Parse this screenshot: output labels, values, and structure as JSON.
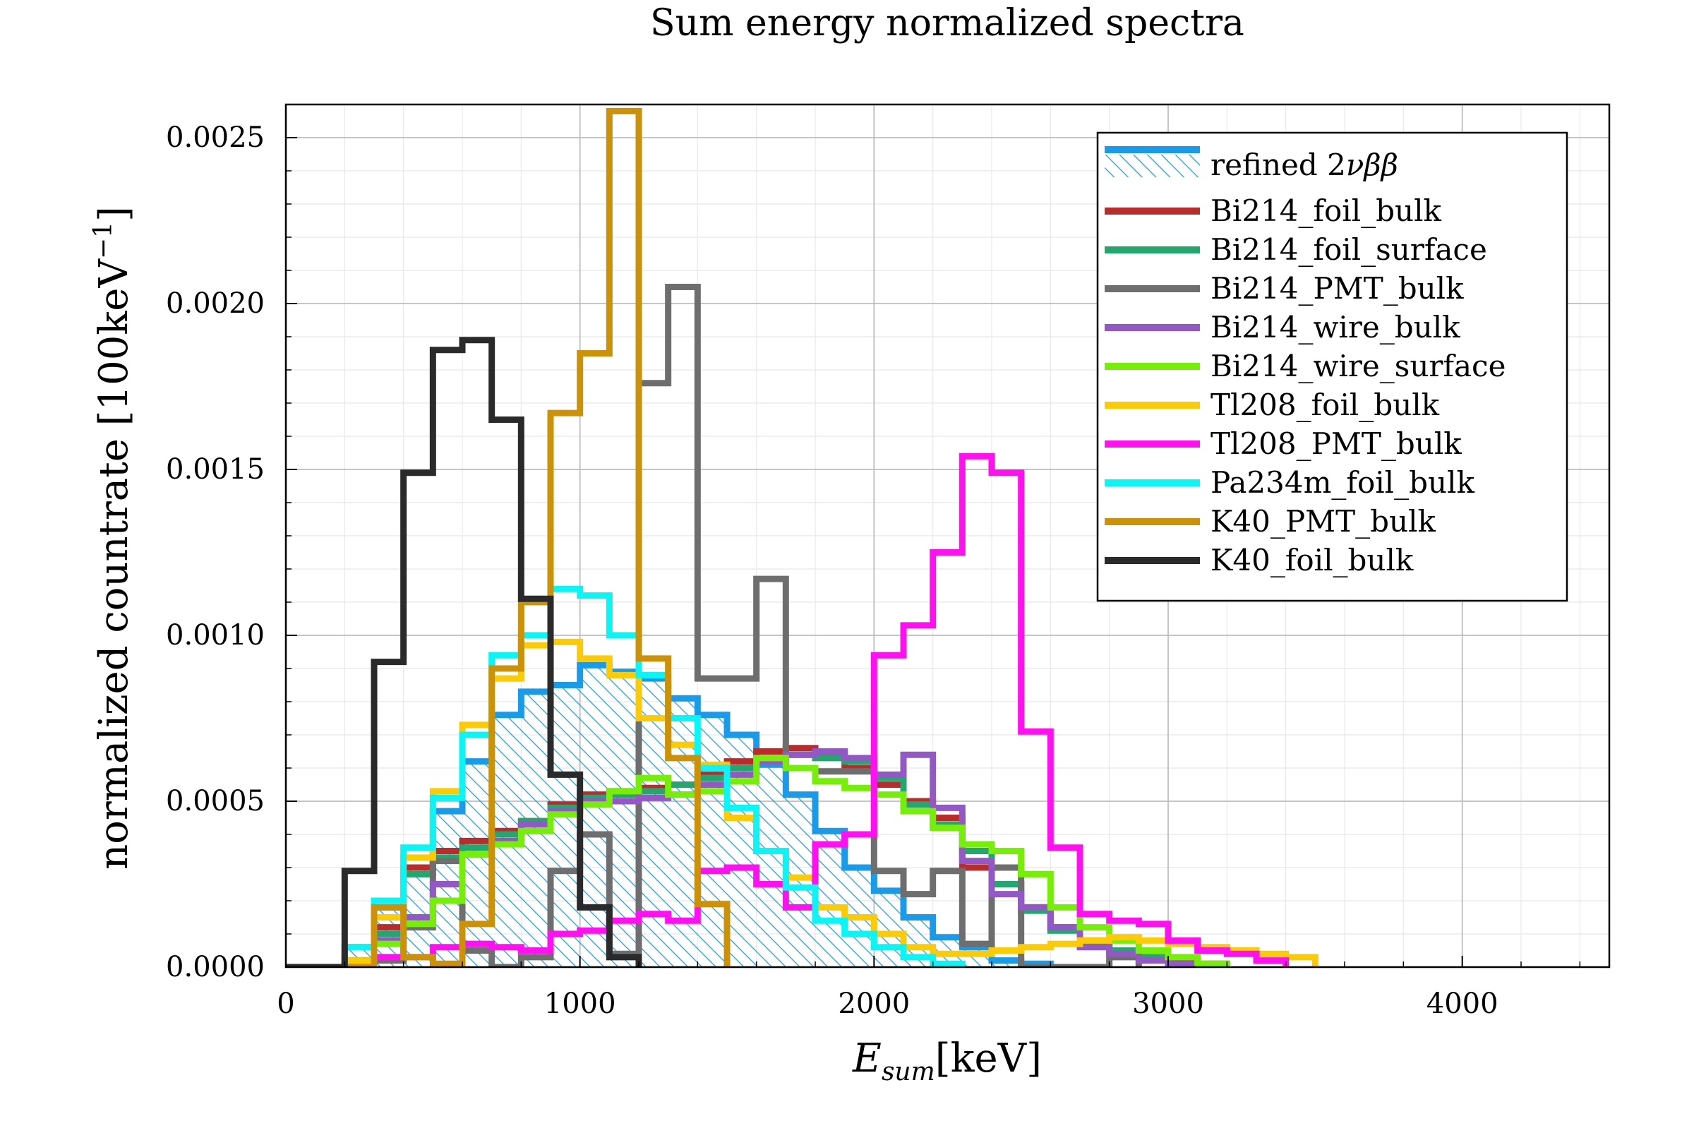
{
  "chart_data": {
    "type": "step-histogram",
    "title": "Sum energy normalized spectra",
    "xlabel": "E_sum[keV]",
    "xlabel_main": "E",
    "xlabel_sub": "sum",
    "xlabel_unit": "[keV]",
    "ylabel": "normalized countrate [100keV^-1]",
    "ylabel_main": "normalized countrate [100keV",
    "ylabel_sup": "−1",
    "ylabel_close": "]",
    "xlim": [
      0,
      4500
    ],
    "ylim": [
      0,
      0.0026
    ],
    "xticks": [
      0,
      1000,
      2000,
      3000,
      4000
    ],
    "xtick_labels": [
      "0",
      "1000",
      "2000",
      "3000",
      "4000"
    ],
    "yticks": [
      0,
      0.0005,
      0.001,
      0.0015,
      0.002,
      0.0025
    ],
    "ytick_labels": [
      "0.0000",
      "0.0005",
      "0.0010",
      "0.0015",
      "0.0020",
      "0.0025"
    ],
    "grid": true,
    "legend_position": "top-right",
    "bin_width": 100,
    "bin_start": 0,
    "series": [
      {
        "name": "refined 2νββ",
        "name_prefix": "refined 2",
        "name_greek": "νββ",
        "color": "#1a9bea",
        "hatched": true,
        "values": [
          0,
          0,
          6e-05,
          0.00018,
          0.0003,
          0.00047,
          0.00062,
          0.00076,
          0.00083,
          0.00085,
          0.00091,
          0.00089,
          0.00087,
          0.00081,
          0.00076,
          0.0007,
          0.00061,
          0.00052,
          0.00041,
          0.0003,
          0.00023,
          0.00015,
          9e-05,
          6e-05,
          2e-05,
          1e-05,
          0,
          0,
          0,
          0,
          0,
          0,
          0,
          0,
          0
        ]
      },
      {
        "name": "Bi214_foil_bulk",
        "color": "#b82c2c",
        "values": [
          0,
          0,
          2e-05,
          0.00012,
          0.0003,
          0.00035,
          0.00038,
          0.00041,
          0.00044,
          0.00049,
          0.00052,
          0.00053,
          0.00054,
          0.00055,
          0.00058,
          0.00062,
          0.00065,
          0.00066,
          0.00064,
          0.0006,
          0.00055,
          0.0005,
          0.00045,
          0.0003,
          0.00025,
          0.00018,
          0.00012,
          8e-05,
          5e-05,
          3e-05,
          2e-05,
          1e-05,
          0,
          0,
          0
        ]
      },
      {
        "name": "Bi214_foil_surface",
        "color": "#25a66e",
        "values": [
          0,
          0,
          2e-05,
          0.0001,
          0.00028,
          0.00033,
          0.00036,
          0.0004,
          0.00044,
          0.00048,
          0.00051,
          0.00052,
          0.00053,
          0.00055,
          0.00057,
          0.0006,
          0.00063,
          0.00064,
          0.00063,
          0.00062,
          0.00057,
          0.00049,
          0.00043,
          0.00035,
          0.00025,
          0.00017,
          0.00011,
          7e-05,
          5e-05,
          3e-05,
          1e-05,
          0,
          0,
          0,
          0
        ]
      },
      {
        "name": "Bi214_PMT_bulk",
        "color": "#6e6e6e",
        "values": [
          0,
          0,
          0,
          2e-05,
          0.00012,
          0.00032,
          5e-05,
          0,
          3e-05,
          0.00029,
          0.0004,
          4e-05,
          0.00176,
          0.00205,
          0.00087,
          0.00087,
          0.00117,
          0.0006,
          0.00059,
          0.00059,
          0.00029,
          0.00022,
          0.00029,
          7e-05,
          0.0003,
          0,
          0,
          0,
          3e-05,
          0,
          0,
          0,
          0,
          0,
          0
        ]
      },
      {
        "name": "Bi214_wire_bulk",
        "color": "#9258c4",
        "values": [
          0,
          0,
          1e-05,
          8e-05,
          0.00015,
          0.00025,
          0.00034,
          0.00038,
          0.00043,
          0.00047,
          0.0005,
          0.0005,
          0.00051,
          0.00052,
          0.00055,
          0.00058,
          0.00062,
          0.00064,
          0.00065,
          0.00063,
          0.00058,
          0.00064,
          0.00048,
          0.00032,
          0.00022,
          0.00018,
          0.00012,
          6e-05,
          4e-05,
          2e-05,
          1e-05,
          0,
          0,
          0,
          0
        ]
      },
      {
        "name": "Bi214_wire_surface",
        "color": "#76ee0a",
        "values": [
          0,
          0,
          1e-05,
          7e-05,
          0.00013,
          0.0002,
          0.00034,
          0.00037,
          0.00041,
          0.00046,
          0.00049,
          0.00053,
          0.00057,
          0.00052,
          0.00053,
          0.00056,
          0.00063,
          0.0006,
          0.00056,
          0.00054,
          0.00052,
          0.00047,
          0.00042,
          0.00037,
          0.00035,
          0.00028,
          0.00018,
          0.00012,
          8e-05,
          5e-05,
          3e-05,
          1e-05,
          0,
          0,
          0
        ]
      },
      {
        "name": "Tl208_foil_bulk",
        "color": "#fccb07",
        "values": [
          0,
          0,
          2e-05,
          0.00015,
          0.00033,
          0.00053,
          0.00073,
          0.00087,
          0.00097,
          0.00098,
          0.00093,
          0.00088,
          0.00075,
          0.00067,
          0.00061,
          0.00045,
          0.00035,
          0.00027,
          0.00018,
          0.00015,
          0.0001,
          6e-05,
          4e-05,
          4e-05,
          5e-05,
          6e-05,
          7e-05,
          8e-05,
          9e-05,
          8e-05,
          7e-05,
          6e-05,
          5e-05,
          4e-05,
          3e-05
        ]
      },
      {
        "name": "Tl208_PMT_bulk",
        "color": "#ff10ef",
        "values": [
          0,
          0,
          0,
          3e-05,
          3e-05,
          6e-05,
          7e-05,
          6e-05,
          5e-05,
          0.0001,
          0.00011,
          0.00014,
          0.00016,
          0.00014,
          0.00029,
          0.0003,
          0.00025,
          0.00018,
          0.00037,
          0.0004,
          0.00094,
          0.00103,
          0.00125,
          0.00154,
          0.00149,
          0.00071,
          0.00036,
          0.00016,
          0.00014,
          0.00013,
          8e-05,
          5e-05,
          4e-05,
          2e-05,
          0
        ]
      },
      {
        "name": "Pa234m_foil_bulk",
        "color": "#0cf4f4",
        "values": [
          0,
          0,
          6e-05,
          0.0002,
          0.00036,
          0.00051,
          0.0007,
          0.00094,
          0.001,
          0.00114,
          0.00112,
          0.001,
          0.00088,
          0.00075,
          0.0006,
          0.00048,
          0.00035,
          0.00024,
          0.00014,
          0.0001,
          6e-05,
          3e-05,
          1e-05,
          0,
          0,
          0,
          0,
          0,
          0,
          0,
          0,
          0,
          0,
          0,
          0
        ]
      },
      {
        "name": "K40_PMT_bulk",
        "color": "#cb9209",
        "values": [
          0,
          0,
          0,
          0.00018,
          3e-05,
          1e-05,
          0.00013,
          0.0009,
          0.0011,
          0.00167,
          0.00185,
          0.00258,
          0.00093,
          0.00063,
          0.00019,
          0,
          0,
          0,
          0,
          0,
          0,
          0,
          0,
          0,
          0,
          0,
          0,
          0,
          0,
          0,
          0,
          0,
          0,
          0,
          0
        ]
      },
      {
        "name": "K40_foil_bulk",
        "color": "#2a2a2a",
        "values": [
          0,
          0,
          0.00029,
          0.00092,
          0.00149,
          0.00186,
          0.00189,
          0.00165,
          0.00111,
          0.00058,
          0.00018,
          3e-05,
          0,
          0,
          0,
          0,
          0,
          0,
          0,
          0,
          0,
          0,
          0,
          0,
          0,
          0,
          0,
          0,
          0,
          0,
          0,
          0,
          0,
          0,
          0
        ]
      }
    ]
  }
}
